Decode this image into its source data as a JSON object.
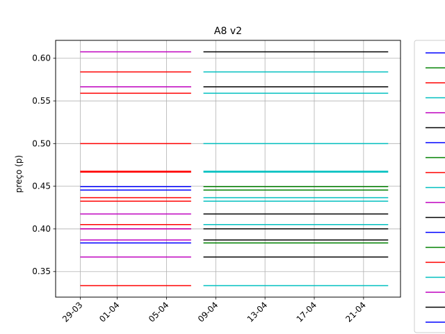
{
  "chart_data": {
    "type": "line",
    "title": "A8 v2",
    "xlabel": "",
    "ylabel": "preço (p)",
    "x_ticks": [
      "29-03",
      "01-04",
      "05-04",
      "09-04",
      "13-04",
      "17-04",
      "21-04"
    ],
    "y_ticks": [
      "0.35",
      "0.40",
      "0.45",
      "0.50",
      "0.55",
      "0.60"
    ],
    "ylim": [
      0.32,
      0.621
    ],
    "xlim": [
      "27-03",
      "24-04"
    ],
    "grid": true,
    "legend_position": "right (partially cut off)",
    "colors": {
      "blue": "#0000ff",
      "green": "#008000",
      "red": "#ff0000",
      "cyan": "#00bfbf",
      "magenta": "#bf00bf",
      "black": "#000000"
    },
    "legend_colors": [
      "blue",
      "green",
      "red",
      "cyan",
      "magenta",
      "black",
      "blue",
      "green",
      "red",
      "cyan",
      "magenta",
      "black",
      "blue",
      "green",
      "red",
      "cyan",
      "magenta",
      "black",
      "blue",
      "green"
    ],
    "segments": [
      {
        "y": 0.6075,
        "x_start": "29-03",
        "x_end": "07-04",
        "color": "magenta"
      },
      {
        "y": 0.6075,
        "x_start": "08-04",
        "x_end": "23-04",
        "color": "black"
      },
      {
        "y": 0.584,
        "x_start": "29-03",
        "x_end": "07-04",
        "color": "red"
      },
      {
        "y": 0.584,
        "x_start": "08-04",
        "x_end": "23-04",
        "color": "cyan"
      },
      {
        "y": 0.5665,
        "x_start": "29-03",
        "x_end": "07-04",
        "color": "red"
      },
      {
        "y": 0.5665,
        "x_start": "29-03",
        "x_end": "07-04",
        "color": "magenta"
      },
      {
        "y": 0.5665,
        "x_start": "08-04",
        "x_end": "23-04",
        "color": "black"
      },
      {
        "y": 0.559,
        "x_start": "29-03",
        "x_end": "07-04",
        "color": "red"
      },
      {
        "y": 0.559,
        "x_start": "08-04",
        "x_end": "23-04",
        "color": "cyan"
      },
      {
        "y": 0.5,
        "x_start": "29-03",
        "x_end": "07-04",
        "color": "red"
      },
      {
        "y": 0.5,
        "x_start": "08-04",
        "x_end": "23-04",
        "color": "cyan"
      },
      {
        "y": 0.4675,
        "x_start": "29-03",
        "x_end": "07-04",
        "color": "red"
      },
      {
        "y": 0.4665,
        "x_start": "29-03",
        "x_end": "07-04",
        "color": "red"
      },
      {
        "y": 0.4675,
        "x_start": "08-04",
        "x_end": "23-04",
        "color": "cyan"
      },
      {
        "y": 0.4665,
        "x_start": "08-04",
        "x_end": "23-04",
        "color": "cyan"
      },
      {
        "y": 0.4495,
        "x_start": "29-03",
        "x_end": "07-04",
        "color": "blue"
      },
      {
        "y": 0.4495,
        "x_start": "08-04",
        "x_end": "23-04",
        "color": "green"
      },
      {
        "y": 0.4455,
        "x_start": "29-03",
        "x_end": "07-04",
        "color": "blue"
      },
      {
        "y": 0.4455,
        "x_start": "08-04",
        "x_end": "23-04",
        "color": "green"
      },
      {
        "y": 0.4365,
        "x_start": "29-03",
        "x_end": "07-04",
        "color": "red"
      },
      {
        "y": 0.4365,
        "x_start": "08-04",
        "x_end": "23-04",
        "color": "cyan"
      },
      {
        "y": 0.4325,
        "x_start": "29-03",
        "x_end": "07-04",
        "color": "red"
      },
      {
        "y": 0.4325,
        "x_start": "08-04",
        "x_end": "23-04",
        "color": "cyan"
      },
      {
        "y": 0.4175,
        "x_start": "29-03",
        "x_end": "07-04",
        "color": "magenta"
      },
      {
        "y": 0.4175,
        "x_start": "08-04",
        "x_end": "23-04",
        "color": "black"
      },
      {
        "y": 0.405,
        "x_start": "29-03",
        "x_end": "07-04",
        "color": "red"
      },
      {
        "y": 0.405,
        "x_start": "08-04",
        "x_end": "23-04",
        "color": "cyan"
      },
      {
        "y": 0.4,
        "x_start": "29-03",
        "x_end": "07-04",
        "color": "red"
      },
      {
        "y": 0.4,
        "x_start": "29-03",
        "x_end": "07-04",
        "color": "magenta"
      },
      {
        "y": 0.4,
        "x_start": "08-04",
        "x_end": "23-04",
        "color": "black"
      },
      {
        "y": 0.387,
        "x_start": "29-03",
        "x_end": "07-04",
        "color": "magenta"
      },
      {
        "y": 0.387,
        "x_start": "08-04",
        "x_end": "23-04",
        "color": "black"
      },
      {
        "y": 0.3835,
        "x_start": "29-03",
        "x_end": "07-04",
        "color": "blue"
      },
      {
        "y": 0.3835,
        "x_start": "08-04",
        "x_end": "23-04",
        "color": "green"
      },
      {
        "y": 0.367,
        "x_start": "29-03",
        "x_end": "07-04",
        "color": "magenta"
      },
      {
        "y": 0.367,
        "x_start": "08-04",
        "x_end": "23-04",
        "color": "black"
      },
      {
        "y": 0.3335,
        "x_start": "29-03",
        "x_end": "07-04",
        "color": "red"
      },
      {
        "y": 0.3335,
        "x_start": "08-04",
        "x_end": "23-04",
        "color": "cyan"
      }
    ]
  }
}
